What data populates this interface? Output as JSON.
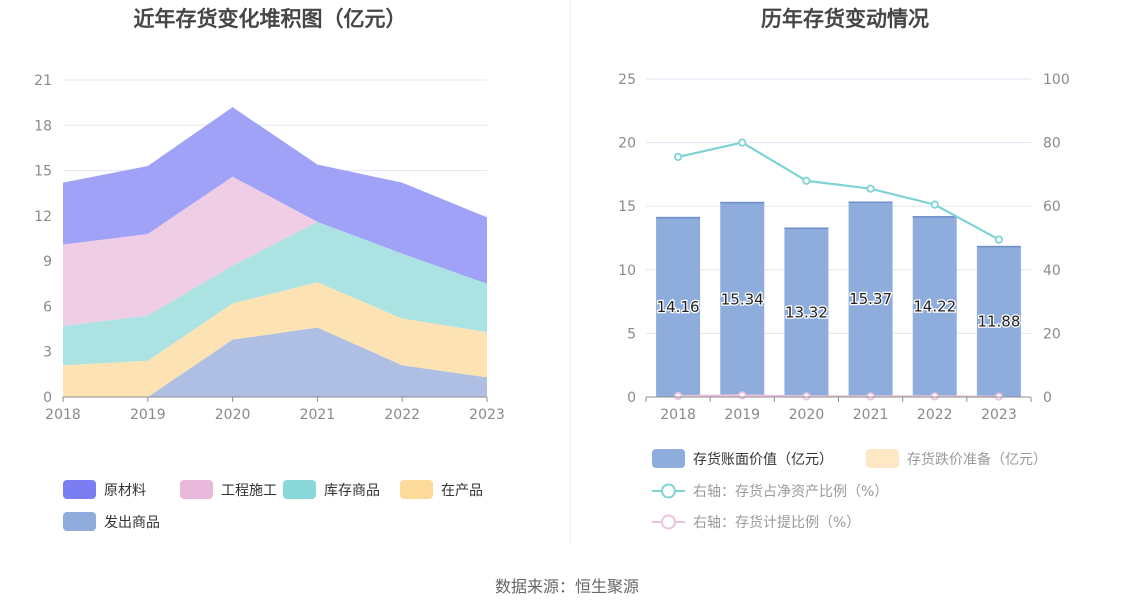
{
  "source_text": "数据来源：恒生聚源",
  "chart_data": [
    {
      "type": "area",
      "stacked": true,
      "title": "近年存货变化堆积图（亿元）",
      "x": [
        "2018",
        "2019",
        "2020",
        "2021",
        "2022",
        "2023"
      ],
      "ylim": [
        0,
        21
      ],
      "yticks": [
        0,
        3,
        6,
        9,
        12,
        15,
        18,
        21
      ],
      "grid": true,
      "legend_position": "bottom",
      "series": [
        {
          "name": "发出商品",
          "color": "#aebfe3",
          "values": [
            0,
            0,
            3.8,
            4.6,
            2.1,
            1.3
          ]
        },
        {
          "name": "在产品",
          "color": "#fde3b4",
          "values": [
            2.1,
            2.4,
            2.4,
            3.0,
            3.1,
            3.0
          ]
        },
        {
          "name": "库存商品",
          "color": "#abe2e2",
          "values": [
            2.6,
            3.0,
            2.5,
            4.0,
            4.3,
            3.2
          ]
        },
        {
          "name": "工程施工",
          "color": "#eecde5",
          "values": [
            5.4,
            5.4,
            5.9,
            0,
            0,
            0
          ]
        },
        {
          "name": "原材料",
          "color": "#a0a2f7",
          "values": [
            4.1,
            4.5,
            4.6,
            3.8,
            4.7,
            4.4
          ]
        }
      ],
      "legend": [
        {
          "name": "原材料",
          "color": "#7b7ef3"
        },
        {
          "name": "工程施工",
          "color": "#e9b9dc"
        },
        {
          "name": "库存商品",
          "color": "#88d8d8"
        },
        {
          "name": "在产品",
          "color": "#fdd99a"
        },
        {
          "name": "发出商品",
          "color": "#90acdc"
        }
      ]
    },
    {
      "type": "bar",
      "title": "历年存货变动情况",
      "categories": [
        "2018",
        "2019",
        "2020",
        "2021",
        "2022",
        "2023"
      ],
      "ylim": [
        0,
        25
      ],
      "yticks": [
        0,
        5,
        10,
        15,
        20,
        25
      ],
      "y2lim": [
        0,
        100
      ],
      "y2ticks": [
        0,
        20,
        40,
        60,
        80,
        100
      ],
      "grid": true,
      "legend_position": "bottom",
      "series": [
        {
          "name": "存货账面价值（亿元）",
          "color": "#8eaddc",
          "axis": "left",
          "kind": "bar",
          "values": [
            14.16,
            15.34,
            13.32,
            15.37,
            14.22,
            11.88
          ],
          "labels": [
            "14.16",
            "15.34",
            "13.32",
            "15.37",
            "14.22",
            "11.88"
          ]
        },
        {
          "name": "存货跌价准备（亿元）",
          "color": "#fde7c4",
          "axis": "left",
          "kind": "bar",
          "values": [
            0,
            0,
            0,
            0,
            0,
            0
          ]
        },
        {
          "name": "右轴：存货占净资产比例（%）",
          "color": "#7fd3d3",
          "axis": "right",
          "kind": "line",
          "values": [
            75.5,
            80,
            68,
            65.5,
            60.5,
            49.5
          ]
        },
        {
          "name": "右轴：存货计提比例（%）",
          "color": "#ecc3dc",
          "axis": "right",
          "kind": "line",
          "values": [
            0.3,
            0.5,
            0.2,
            0.2,
            0.2,
            0.1
          ]
        }
      ]
    }
  ]
}
